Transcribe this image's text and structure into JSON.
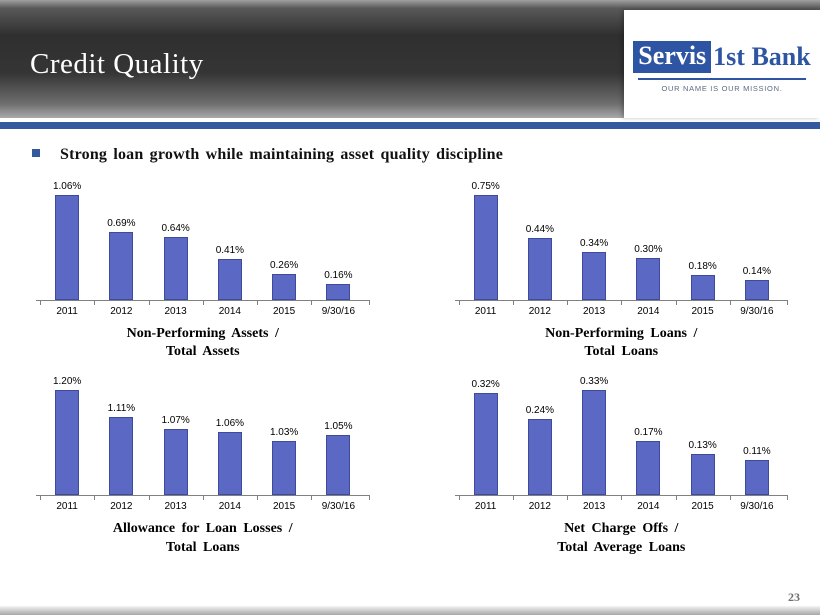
{
  "header": {
    "title": "Credit Quality",
    "logo": {
      "brand_box": "Servis",
      "brand_rest": "1st Bank",
      "tagline": "OUR NAME IS OUR MISSION."
    }
  },
  "bullet": {
    "text": "Strong loan growth while maintaining asset quality discipline"
  },
  "footer": {
    "page_number": "23"
  },
  "colors": {
    "bar_fill": "#5b68c4",
    "bar_border": "#3e4a9c",
    "accent_blue": "#35599f",
    "logo_blue": "#2e55a3"
  },
  "chart_data": [
    {
      "type": "bar",
      "title": "Non-Performing Assets / Total Assets",
      "title_lines": [
        "Non-Performing Assets /",
        "Total Assets"
      ],
      "categories": [
        "2011",
        "2012",
        "2013",
        "2014",
        "2015",
        "9/30/16"
      ],
      "values": [
        1.06,
        0.69,
        0.64,
        0.41,
        0.26,
        0.16
      ],
      "value_labels": [
        "1.06%",
        "0.69%",
        "0.64%",
        "0.41%",
        "0.26%",
        "0.16%"
      ],
      "ylim": [
        0,
        1.06
      ],
      "grid": false,
      "legend": false
    },
    {
      "type": "bar",
      "title": "Non-Performing Loans / Total Loans",
      "title_lines": [
        "Non-Performing Loans /",
        "Total Loans"
      ],
      "categories": [
        "2011",
        "2012",
        "2013",
        "2014",
        "2015",
        "9/30/16"
      ],
      "values": [
        0.75,
        0.44,
        0.34,
        0.3,
        0.18,
        0.14
      ],
      "value_labels": [
        "0.75%",
        "0.44%",
        "0.34%",
        "0.30%",
        "0.18%",
        "0.14%"
      ],
      "ylim": [
        0,
        0.75
      ],
      "grid": false,
      "legend": false
    },
    {
      "type": "bar",
      "title": "Allowance for Loan Losses / Total Loans",
      "title_lines": [
        "Allowance for Loan Losses /",
        "Total Loans"
      ],
      "categories": [
        "2011",
        "2012",
        "2013",
        "2014",
        "2015",
        "9/30/16"
      ],
      "values": [
        1.2,
        1.11,
        1.07,
        1.06,
        1.03,
        1.05
      ],
      "value_labels": [
        "1.20%",
        "1.11%",
        "1.07%",
        "1.06%",
        "1.03%",
        "1.05%"
      ],
      "ylim": [
        0.85,
        1.2
      ],
      "grid": false,
      "legend": false
    },
    {
      "type": "bar",
      "title": "Net Charge Offs / Total Average Loans",
      "title_lines": [
        "Net Charge Offs /",
        "Total Average Loans"
      ],
      "categories": [
        "2011",
        "2012",
        "2013",
        "2014",
        "2015",
        "9/30/16"
      ],
      "values": [
        0.32,
        0.24,
        0.33,
        0.17,
        0.13,
        0.11
      ],
      "value_labels": [
        "0.32%",
        "0.24%",
        "0.33%",
        "0.17%",
        "0.13%",
        "0.11%"
      ],
      "ylim": [
        0,
        0.33
      ],
      "grid": false,
      "legend": false
    }
  ]
}
